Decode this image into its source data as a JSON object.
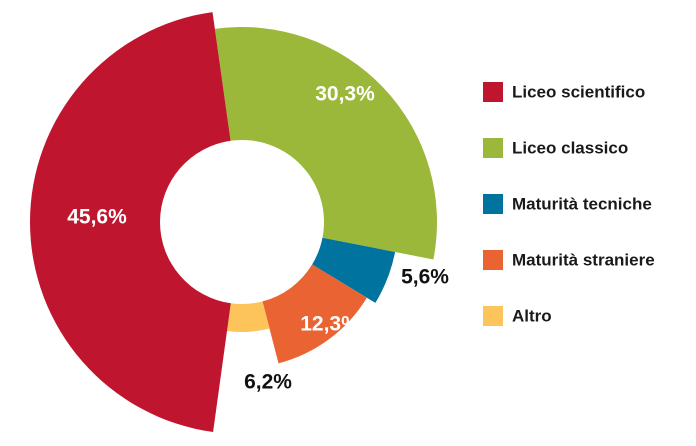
{
  "chart_data": {
    "type": "donut",
    "categories": [
      "Liceo scientifico",
      "Liceo classico",
      "Maturità tecniche",
      "Maturità straniere",
      "Altro"
    ],
    "values": [
      45.6,
      30.3,
      5.6,
      12.3,
      6.2
    ],
    "value_labels": [
      "45,6%",
      "30,3%",
      "5,6%",
      "12,3%",
      "6,2%"
    ],
    "colors": [
      "#c0152f",
      "#9cb83a",
      "#00739e",
      "#ea6332",
      "#fcc45a"
    ],
    "legend": "right"
  }
}
